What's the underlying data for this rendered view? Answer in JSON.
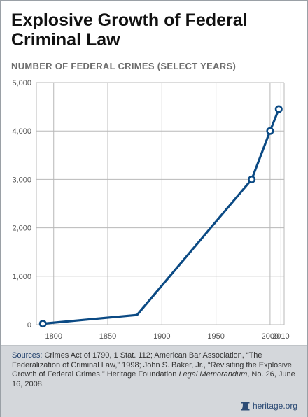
{
  "title": "Explosive Growth of Federal Criminal Law",
  "subtitle": "NUMBER OF FEDERAL CRIMES (SELECT YEARS)",
  "chart_data": {
    "type": "line",
    "title": "Explosive Growth of Federal Criminal Law",
    "subtitle": "NUMBER OF FEDERAL CRIMES (SELECT YEARS)",
    "xlabel": "",
    "ylabel": "",
    "x": [
      1790,
      1877,
      1983,
      2000,
      2008
    ],
    "y": [
      20,
      200,
      3000,
      4000,
      4450
    ],
    "xlim": [
      1784,
      2013
    ],
    "ylim": [
      0,
      5000
    ],
    "x_ticks": [
      1800,
      1850,
      1900,
      1950,
      2000,
      2010
    ],
    "x_tick_labels": [
      "1800",
      "1850",
      "1900",
      "1950",
      "2000",
      "2010"
    ],
    "y_ticks": [
      0,
      1000,
      2000,
      3000,
      4000,
      5000
    ],
    "y_tick_labels": [
      "0",
      "1,000",
      "2,000",
      "3,000",
      "4,000",
      "5,000"
    ],
    "grid": true,
    "line_color": "#0b4a84",
    "grid_color": "#b8b8b8"
  },
  "sources": {
    "prefix": "Sources:",
    "text": " Crimes Act of 1790, 1 Stat. 112; American Bar Association, “The Federalization of Criminal Law,” 1998; John S. Baker, Jr., “Revisiting the Explosive Growth of Federal Crimes,” Heritage Foundation ",
    "italic": "Legal Memorandum",
    "suffix": ", No. 26, June 16, 2008."
  },
  "logo": {
    "text": "heritage.org",
    "icon": "bell-icon"
  }
}
